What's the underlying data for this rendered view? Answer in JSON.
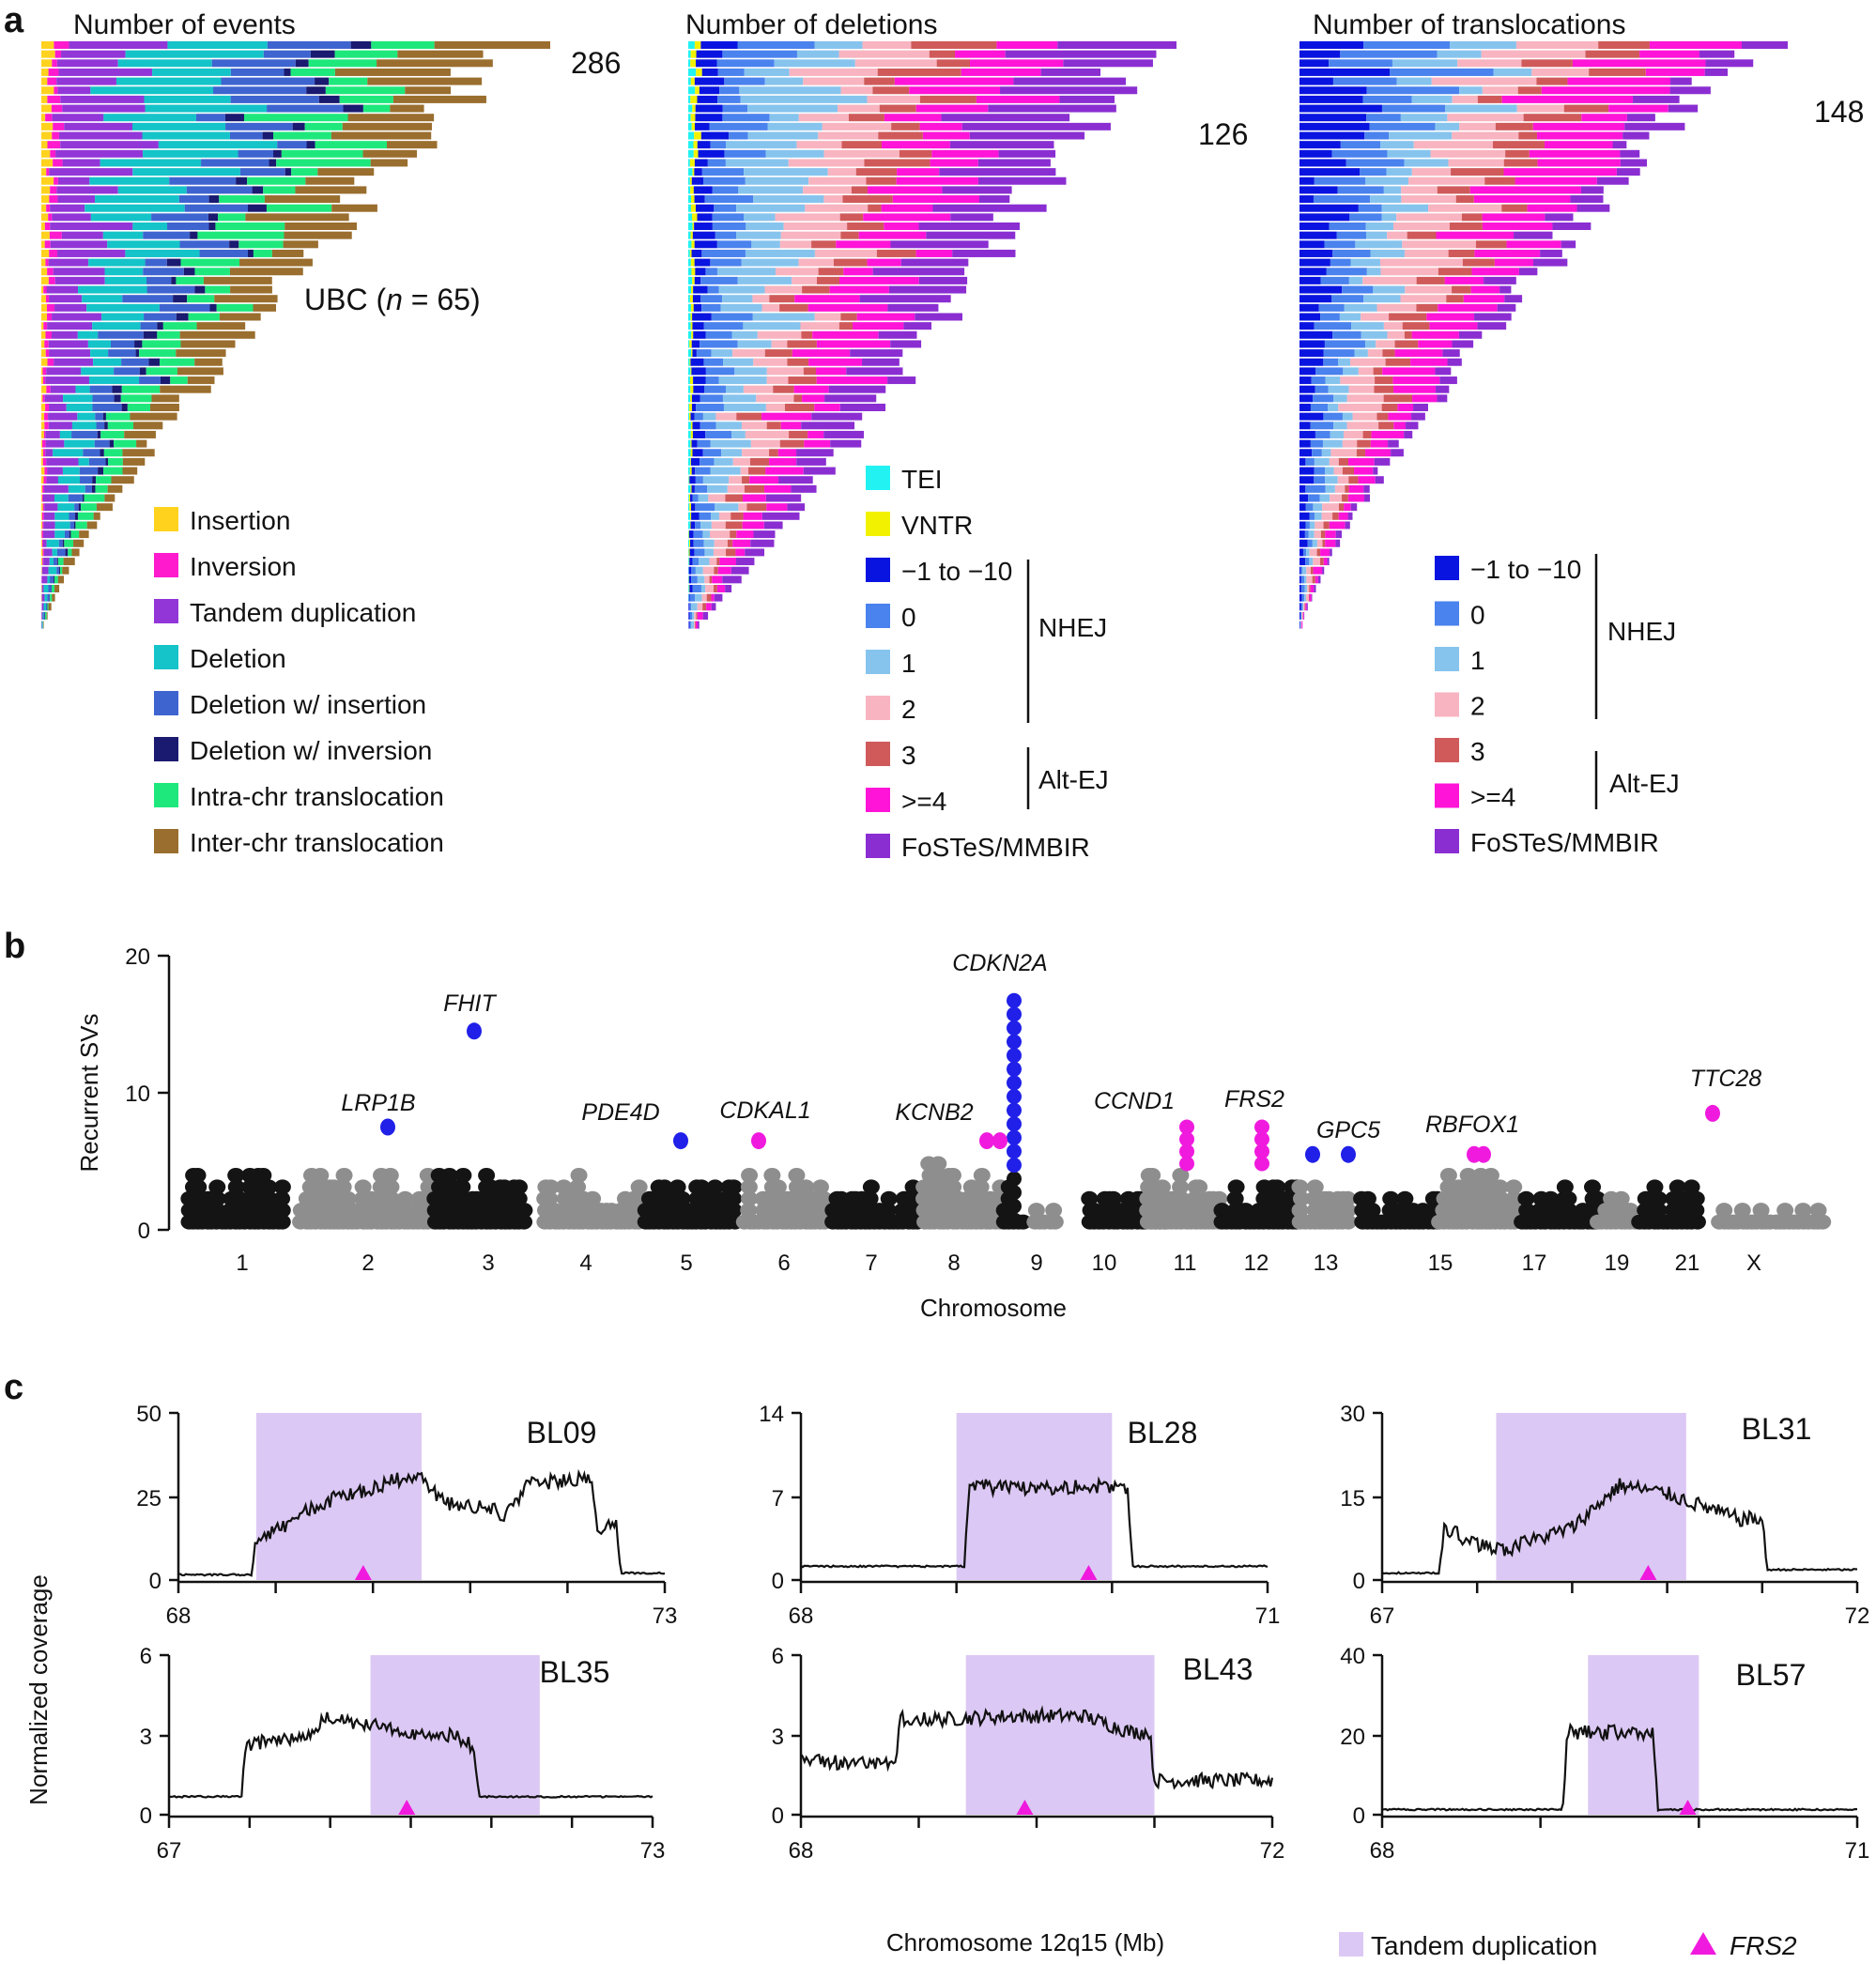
{
  "panel_labels": {
    "a": "a",
    "b": "b",
    "c": "c"
  },
  "panel_a": {
    "cohort_label": "UBC (",
    "cohort_n_symbol": "n",
    "cohort_n_value": " = 65)",
    "events": {
      "title": "Number of events",
      "max_label": "286",
      "max_value": 286,
      "legend": [
        {
          "label": "Insertion",
          "color": "#FFD21E"
        },
        {
          "label": "Inversion",
          "color": "#FF1ACD"
        },
        {
          "label": "Tandem duplication",
          "color": "#9236D8"
        },
        {
          "label": "Deletion",
          "color": "#14C4C8"
        },
        {
          "label": "Deletion w/ insertion",
          "color": "#3E64D0"
        },
        {
          "label": "Deletion w/ inversion",
          "color": "#1A1A70"
        },
        {
          "label": "Intra-chr translocation",
          "color": "#1EE87C"
        },
        {
          "label": "Inter-chr translocation",
          "color": "#9A6E2E"
        }
      ]
    },
    "deletions": {
      "title": "Number of deletions",
      "max_label": "126",
      "max_value": 126,
      "legend": [
        {
          "label": "TEI",
          "color": "#22F2F2"
        },
        {
          "label": "VNTR",
          "color": "#F2F200"
        },
        {
          "label": "−1 to −10",
          "color": "#0A14E0"
        },
        {
          "label": "0",
          "color": "#4A82EE"
        },
        {
          "label": "1",
          "color": "#86C4EE"
        },
        {
          "label": "2",
          "color": "#F8B4C0"
        },
        {
          "label": "3",
          "color": "#D05A5A"
        },
        {
          "label": ">=4",
          "color": "#FF14D8"
        },
        {
          "label": "FoSTeS/MMBIR",
          "color": "#8A2ED2"
        }
      ],
      "group_labels": {
        "nhej": "NHEJ",
        "altej": "Alt-EJ"
      }
    },
    "translocations": {
      "title": "Number of translocations",
      "max_label": "148",
      "max_value": 148,
      "legend": [
        {
          "label": "−1 to −10",
          "color": "#0A14E0"
        },
        {
          "label": "0",
          "color": "#4A82EE"
        },
        {
          "label": "1",
          "color": "#86C4EE"
        },
        {
          "label": "2",
          "color": "#F8B4C0"
        },
        {
          "label": "3",
          "color": "#D05A5A"
        },
        {
          "label": ">=4",
          "color": "#FF14D8"
        },
        {
          "label": "FoSTeS/MMBIR",
          "color": "#8A2ED2"
        }
      ],
      "group_labels": {
        "nhej": "NHEJ",
        "altej": "Alt-EJ"
      }
    }
  },
  "panel_b": {
    "ylabel": "Recurrent SVs",
    "xlabel": "Chromosome",
    "yticks": [
      "0",
      "10",
      "20"
    ],
    "chromosome_labels": [
      "1",
      "2",
      "3",
      "4",
      "5",
      "6",
      "7",
      "8",
      "9",
      "10",
      "11",
      "12",
      "13",
      "15",
      "17",
      "19",
      "21",
      "X"
    ],
    "genes": [
      {
        "name": "LRP1B",
        "value": 7.5,
        "color": "#2020E8"
      },
      {
        "name": "FHIT",
        "value": 14.5,
        "color": "#2020E8"
      },
      {
        "name": "PDE4D",
        "value": 6.5,
        "color": "#2020E8"
      },
      {
        "name": "CDKAL1",
        "value": 6.5,
        "color": "#F01ADE"
      },
      {
        "name": "KCNB2",
        "value": 6.5,
        "color": "#F01ADE"
      },
      {
        "name": "CDKN2A",
        "value": 17.5,
        "color": "#2020E8"
      },
      {
        "name": "CCND1",
        "value": 7.5,
        "color": "#F01ADE"
      },
      {
        "name": "FRS2",
        "value": 7.5,
        "color": "#F01ADE"
      },
      {
        "name": "GPC5",
        "value": 5.5,
        "color": "#2020E8"
      },
      {
        "name": "RBFOX1",
        "value": 5.5,
        "color": "#F01ADE"
      },
      {
        "name": "TTC28",
        "value": 8.5,
        "color": "#F01ADE"
      }
    ]
  },
  "panel_c": {
    "ylabel": "Normalized coverage",
    "xlabel": "Chromosome 12q15 (Mb)",
    "legend_td": "Tandem duplication",
    "legend_frs2": "FRS2",
    "td_color": "#DCC8F4",
    "frs2_color": "#F01ADE",
    "samples": [
      {
        "name": "BL09",
        "yticks": [
          "0",
          "25",
          "50"
        ],
        "ymax": 50,
        "xmin_label": "68",
        "xmax_label": "73",
        "xmin": 68,
        "xmax": 73,
        "td": [
          68.8,
          70.5
        ],
        "frs2": 69.9
      },
      {
        "name": "BL28",
        "yticks": [
          "0",
          "7",
          "14"
        ],
        "ymax": 14,
        "xmin_label": "68",
        "xmax_label": "71",
        "xmin": 68,
        "xmax": 71,
        "td": [
          69.0,
          70.0
        ],
        "frs2": 69.85
      },
      {
        "name": "BL31",
        "yticks": [
          "0",
          "15",
          "30"
        ],
        "ymax": 30,
        "xmin_label": "67",
        "xmax_label": "72",
        "xmin": 67,
        "xmax": 72,
        "td": [
          68.2,
          70.2
        ],
        "frs2": 69.8
      },
      {
        "name": "BL35",
        "yticks": [
          "0",
          "3",
          "6"
        ],
        "ymax": 6,
        "xmin_label": "67",
        "xmax_label": "73",
        "xmin": 67,
        "xmax": 73,
        "td": [
          69.5,
          71.6
        ],
        "frs2": 69.95
      },
      {
        "name": "BL43",
        "yticks": [
          "0",
          "3",
          "6"
        ],
        "ymax": 6,
        "xmin_label": "68",
        "xmax_label": "72",
        "xmin": 68,
        "xmax": 72,
        "td": [
          69.4,
          71.0
        ],
        "frs2": 69.9
      },
      {
        "name": "BL57",
        "yticks": [
          "0",
          "20",
          "40"
        ],
        "ymax": 40,
        "xmin_label": "68",
        "xmax_label": "71",
        "xmin": 68,
        "xmax": 71,
        "td": [
          69.3,
          70.0
        ],
        "frs2": 69.93
      }
    ]
  },
  "chart_data": [
    {
      "type": "bar",
      "title": "Number of events",
      "categories_count": 65,
      "max_value": 286,
      "series_names": [
        "Insertion",
        "Inversion",
        "Tandem duplication",
        "Deletion",
        "Deletion w/ insertion",
        "Deletion w/ inversion",
        "Intra-chr translocation",
        "Inter-chr translocation"
      ]
    },
    {
      "type": "bar",
      "title": "Number of deletions",
      "categories_count": 65,
      "max_value": 126,
      "series_names": [
        "TEI",
        "VNTR",
        "−1 to −10",
        "0",
        "1",
        "2",
        "3",
        ">=4",
        "FoSTeS/MMBIR"
      ]
    },
    {
      "type": "bar",
      "title": "Number of translocations",
      "categories_count": 65,
      "max_value": 148,
      "series_names": [
        "−1 to −10",
        "0",
        "1",
        "2",
        "3",
        ">=4",
        "FoSTeS/MMBIR"
      ]
    },
    {
      "type": "scatter",
      "title": "Recurrent SVs",
      "xlabel": "Chromosome",
      "ylabel": "Recurrent SVs",
      "ylim": [
        0,
        20
      ],
      "labeled_points": [
        {
          "gene": "LRP1B",
          "y": 7.5
        },
        {
          "gene": "FHIT",
          "y": 14.5
        },
        {
          "gene": "PDE4D",
          "y": 6.5
        },
        {
          "gene": "CDKAL1",
          "y": 6.5
        },
        {
          "gene": "KCNB2",
          "y": 6.5
        },
        {
          "gene": "CDKN2A",
          "y": 17.5
        },
        {
          "gene": "CCND1",
          "y": 7.5
        },
        {
          "gene": "FRS2",
          "y": 7.5
        },
        {
          "gene": "GPC5",
          "y": 5.5
        },
        {
          "gene": "RBFOX1",
          "y": 5.5
        },
        {
          "gene": "TTC28",
          "y": 8.5
        }
      ]
    },
    {
      "type": "line",
      "title": "Normalized coverage",
      "xlabel": "Chromosome 12q15 (Mb)",
      "ylabel": "Normalized coverage",
      "series": [
        "BL09",
        "BL28",
        "BL31",
        "BL35",
        "BL43",
        "BL57"
      ]
    }
  ]
}
